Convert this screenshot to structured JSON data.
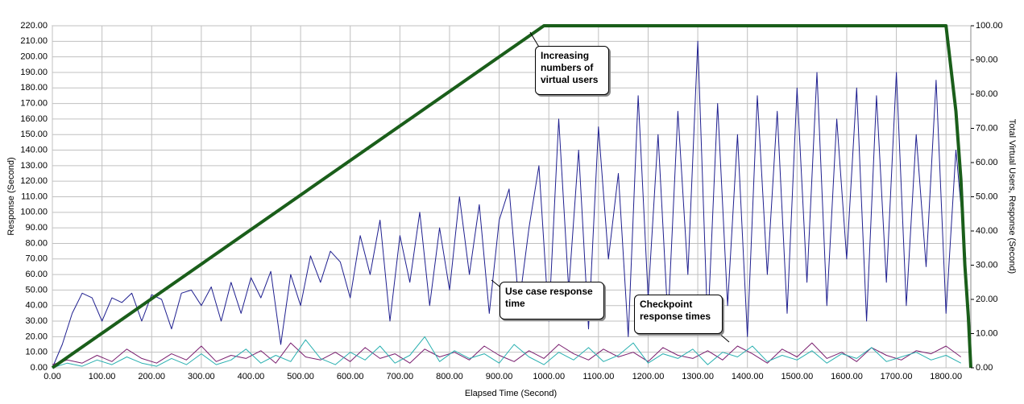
{
  "chart_data": {
    "type": "line",
    "xlabel": "Elapsed Time (Second)",
    "ylabel": "Response (Second)",
    "y2label": "Total Virtual Users, Response (Second)",
    "xlim": [
      0,
      1850
    ],
    "ylim": [
      0,
      220
    ],
    "y2lim": [
      0,
      100
    ],
    "grid": true,
    "xticks": [
      {
        "value": 0,
        "label": "0.00"
      },
      {
        "value": 100,
        "label": "100.00"
      },
      {
        "value": 200,
        "label": "200.00"
      },
      {
        "value": 300,
        "label": "300.00"
      },
      {
        "value": 400,
        "label": "400.00"
      },
      {
        "value": 500,
        "label": "500.00"
      },
      {
        "value": 600,
        "label": "600.00"
      },
      {
        "value": 700,
        "label": "700.00"
      },
      {
        "value": 800,
        "label": "800.00"
      },
      {
        "value": 900,
        "label": "900.00"
      },
      {
        "value": 1000,
        "label": "1000.00"
      },
      {
        "value": 1100,
        "label": "1100.00"
      },
      {
        "value": 1200,
        "label": "1200.00"
      },
      {
        "value": 1300,
        "label": "1300.00"
      },
      {
        "value": 1400,
        "label": "1400.00"
      },
      {
        "value": 1500,
        "label": "1500.00"
      },
      {
        "value": 1600,
        "label": "1600.00"
      },
      {
        "value": 1700,
        "label": "1700.00"
      },
      {
        "value": 1800,
        "label": "1800.00"
      }
    ],
    "yticks": [
      {
        "value": 0,
        "label": "0.00"
      },
      {
        "value": 10,
        "label": "10.00"
      },
      {
        "value": 20,
        "label": "20.00"
      },
      {
        "value": 30,
        "label": "30.00"
      },
      {
        "value": 40,
        "label": "40.00"
      },
      {
        "value": 50,
        "label": "50.00"
      },
      {
        "value": 60,
        "label": "60.00"
      },
      {
        "value": 70,
        "label": "70.00"
      },
      {
        "value": 80,
        "label": "80.00"
      },
      {
        "value": 90,
        "label": "90.00"
      },
      {
        "value": 100,
        "label": "100.00"
      },
      {
        "value": 110,
        "label": "110.00"
      },
      {
        "value": 120,
        "label": "120.00"
      },
      {
        "value": 130,
        "label": "130.00"
      },
      {
        "value": 140,
        "label": "140.00"
      },
      {
        "value": 150,
        "label": "150.00"
      },
      {
        "value": 160,
        "label": "160.00"
      },
      {
        "value": 170,
        "label": "170.00"
      },
      {
        "value": 180,
        "label": "180.00"
      },
      {
        "value": 190,
        "label": "190.00"
      },
      {
        "value": 200,
        "label": "200.00"
      },
      {
        "value": 210,
        "label": "210.00"
      },
      {
        "value": 220,
        "label": "220.00"
      }
    ],
    "y2ticks": [
      {
        "value": 0,
        "label": "0.00"
      },
      {
        "value": 10,
        "label": "10.00"
      },
      {
        "value": 20,
        "label": "20.00"
      },
      {
        "value": 30,
        "label": "30.00"
      },
      {
        "value": 40,
        "label": "40.00"
      },
      {
        "value": 50,
        "label": "50.00"
      },
      {
        "value": 60,
        "label": "60.00"
      },
      {
        "value": 70,
        "label": "70.00"
      },
      {
        "value": 80,
        "label": "80.00"
      },
      {
        "value": 90,
        "label": "90.00"
      },
      {
        "value": 100,
        "label": "100.00"
      }
    ],
    "series": [
      {
        "color": "#1f1f8f",
        "width": 1,
        "x": [
          0,
          20,
          40,
          60,
          80,
          100,
          120,
          140,
          160,
          180,
          200,
          220,
          240,
          260,
          280,
          300,
          320,
          340,
          360,
          380,
          400,
          420,
          440,
          460,
          480,
          500,
          520,
          540,
          560,
          580,
          600,
          620,
          640,
          660,
          680,
          700,
          720,
          740,
          760,
          780,
          800,
          820,
          840,
          860,
          880,
          900,
          920,
          940,
          960,
          980,
          1000,
          1020,
          1040,
          1060,
          1080,
          1100,
          1120,
          1140,
          1160,
          1180,
          1200,
          1220,
          1240,
          1260,
          1280,
          1300,
          1320,
          1340,
          1360,
          1380,
          1400,
          1420,
          1440,
          1460,
          1480,
          1500,
          1520,
          1540,
          1560,
          1580,
          1600,
          1620,
          1640,
          1660,
          1680,
          1700,
          1720,
          1740,
          1760,
          1780,
          1800,
          1820,
          1840
        ],
        "values": [
          0,
          15,
          35,
          48,
          45,
          30,
          45,
          42,
          48,
          30,
          47,
          44,
          25,
          48,
          50,
          40,
          52,
          30,
          55,
          35,
          58,
          45,
          62,
          15,
          60,
          40,
          72,
          55,
          75,
          68,
          45,
          85,
          60,
          95,
          30,
          85,
          55,
          100,
          40,
          90,
          50,
          110,
          60,
          105,
          35,
          95,
          115,
          40,
          90,
          130,
          30,
          160,
          50,
          140,
          25,
          155,
          70,
          125,
          20,
          175,
          45,
          150,
          30,
          165,
          60,
          210,
          25,
          170,
          40,
          150,
          20,
          175,
          60,
          165,
          35,
          180,
          55,
          190,
          40,
          160,
          70,
          180,
          30,
          175,
          55,
          190,
          40,
          150,
          65,
          185,
          35,
          140,
          70
        ]
      },
      {
        "color": "#7a1f6f",
        "width": 1,
        "x": [
          0,
          30,
          60,
          90,
          120,
          150,
          180,
          210,
          240,
          270,
          300,
          330,
          360,
          390,
          420,
          450,
          480,
          510,
          540,
          570,
          600,
          630,
          660,
          690,
          720,
          750,
          780,
          810,
          840,
          870,
          900,
          930,
          960,
          990,
          1020,
          1050,
          1080,
          1110,
          1140,
          1170,
          1200,
          1230,
          1260,
          1290,
          1320,
          1350,
          1380,
          1410,
          1440,
          1470,
          1500,
          1530,
          1560,
          1590,
          1620,
          1650,
          1680,
          1710,
          1740,
          1770,
          1800,
          1830
        ],
        "values": [
          2,
          5,
          3,
          8,
          4,
          12,
          6,
          3,
          9,
          5,
          14,
          4,
          8,
          6,
          11,
          3,
          16,
          7,
          5,
          10,
          4,
          13,
          6,
          9,
          3,
          12,
          7,
          10,
          5,
          14,
          8,
          4,
          11,
          6,
          15,
          9,
          5,
          12,
          7,
          10,
          4,
          13,
          8,
          6,
          11,
          5,
          14,
          9,
          3,
          12,
          7,
          16,
          6,
          10,
          4,
          13,
          8,
          5,
          11,
          9,
          14,
          7
        ]
      },
      {
        "color": "#2ab0b0",
        "width": 1,
        "x": [
          0,
          30,
          60,
          90,
          120,
          150,
          180,
          210,
          240,
          270,
          300,
          330,
          360,
          390,
          420,
          450,
          480,
          510,
          540,
          570,
          600,
          630,
          660,
          690,
          720,
          750,
          780,
          810,
          840,
          870,
          900,
          930,
          960,
          990,
          1020,
          1050,
          1080,
          1110,
          1140,
          1170,
          1200,
          1230,
          1260,
          1290,
          1320,
          1350,
          1380,
          1410,
          1440,
          1470,
          1500,
          1530,
          1560,
          1590,
          1620,
          1650,
          1680,
          1710,
          1740,
          1770,
          1800,
          1830
        ],
        "values": [
          0,
          3,
          1,
          5,
          2,
          7,
          3,
          1,
          6,
          2,
          9,
          2,
          5,
          12,
          3,
          8,
          4,
          18,
          6,
          2,
          10,
          5,
          14,
          3,
          8,
          20,
          4,
          11,
          6,
          9,
          3,
          15,
          7,
          2,
          10,
          5,
          13,
          4,
          8,
          16,
          3,
          9,
          6,
          12,
          2,
          10,
          7,
          14,
          4,
          8,
          5,
          11,
          3,
          9,
          6,
          13,
          4,
          7,
          10,
          5,
          8,
          3
        ]
      },
      {
        "color": "#1a5e1a",
        "width": 4,
        "axis": "y2",
        "x": [
          0,
          990,
          1800,
          1812,
          1820,
          1830,
          1838,
          1845,
          1850
        ],
        "values": [
          0,
          100,
          100,
          85,
          75,
          55,
          30,
          15,
          0
        ]
      }
    ],
    "annotations": [
      {
        "text": "Increasing numbers of virtual users"
      },
      {
        "text": "Use case response time"
      },
      {
        "text": "Checkpoint response times"
      }
    ]
  }
}
